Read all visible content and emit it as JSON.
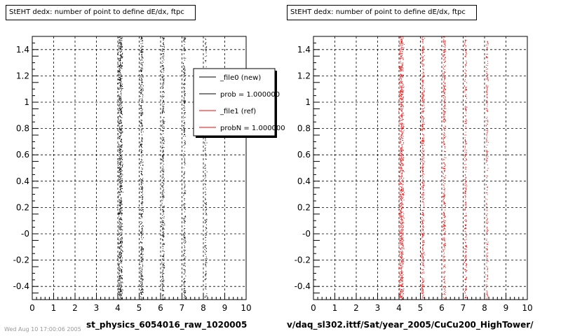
{
  "footer_note": "Wed Aug 10 17:00:06 2005",
  "chart_data": [
    {
      "type": "scatter",
      "title": "StEHT dedx: number of point to define dE/dx, ftpc",
      "xlabel": "st_physics_6054016_raw_1020005",
      "ylabel": "",
      "xlim": [
        0,
        10
      ],
      "ylim": [
        -0.5,
        1.5
      ],
      "x_ticks": [
        "0",
        "1",
        "2",
        "3",
        "4",
        "5",
        "6",
        "7",
        "8",
        "9",
        "10"
      ],
      "y_ticks": [
        "-0.4",
        "-0.2",
        "-0",
        "0.2",
        "0.4",
        "0.6",
        "0.8",
        "1",
        "1.2",
        "1.4"
      ],
      "grid": true,
      "series": [
        {
          "name": "_file0 (new)",
          "color": "#000000",
          "bands": [
            {
              "x": 4.1,
              "density": 1.0
            },
            {
              "x": 5.1,
              "density": 0.55
            },
            {
              "x": 6.1,
              "density": 0.45
            },
            {
              "x": 7.1,
              "density": 0.35
            },
            {
              "x": 8.1,
              "density": 0.25
            }
          ]
        }
      ],
      "legend": {
        "placement": "top-right",
        "entries": [
          {
            "label": "_file0 (new)",
            "color": "#000000"
          },
          {
            "label": "prob = 1.000000",
            "color": "#000000"
          },
          {
            "label": "_file1 (ref)",
            "color": "#ff0000"
          },
          {
            "label": "probN = 1.000000",
            "color": "#ff0000"
          }
        ]
      }
    },
    {
      "type": "scatter",
      "title": "StEHT dedx: number of point to define dE/dx, ftpc",
      "xlabel": "v/daq_sl302.ittf/Sat/year_2005/CuCu200_HighTower/",
      "ylabel": "",
      "xlim": [
        0,
        10
      ],
      "ylim": [
        -0.5,
        1.5
      ],
      "x_ticks": [
        "0",
        "1",
        "2",
        "3",
        "4",
        "5",
        "6",
        "7",
        "8",
        "9",
        "10"
      ],
      "y_ticks": [
        "-0.4",
        "-0.2",
        "-0",
        "0.2",
        "0.4",
        "0.6",
        "0.8",
        "1",
        "1.2",
        "1.4"
      ],
      "grid": true,
      "series": [
        {
          "name": "",
          "color": "#ff0000",
          "bands": [
            {
              "x": 4.1,
              "density": 1.0
            },
            {
              "x": 5.1,
              "density": 0.55
            },
            {
              "x": 6.1,
              "density": 0.45
            },
            {
              "x": 7.1,
              "density": 0.35
            },
            {
              "x": 8.1,
              "density": 0.25
            }
          ]
        }
      ]
    }
  ]
}
